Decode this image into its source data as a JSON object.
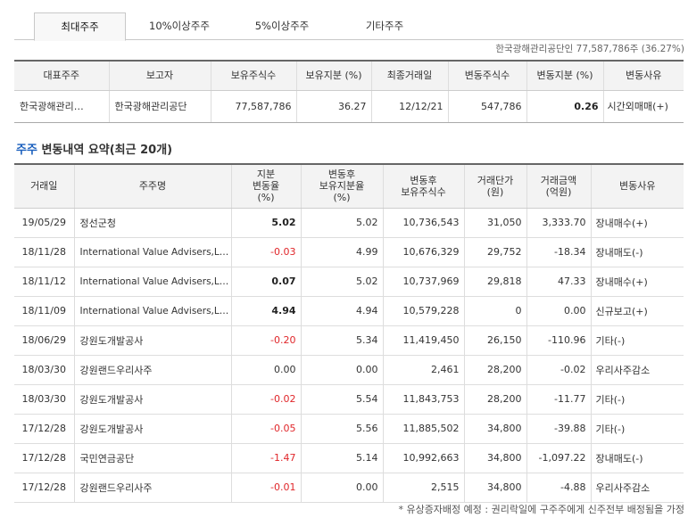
{
  "tabs": [
    "최대주주",
    "10%이상주주",
    "5%이상주주",
    "기타주주"
  ],
  "holder_summary": "한국광해관리공단인 77,587,786주 (36.27%)",
  "rep_table": {
    "headers": [
      "대표주주",
      "보고자",
      "보유주식수",
      "보유지분 (%)",
      "최종거래일",
      "변동주식수",
      "변동지분 (%)",
      "변동사유"
    ],
    "row": [
      "한국광해관리…",
      "한국광해관리공단",
      "77,587,786",
      "36.27",
      "12/12/21",
      "547,786",
      "0.26",
      "시간외매매(+)"
    ]
  },
  "section": {
    "accent": "주주",
    "title": " 변동내역 요약(최근 20개)"
  },
  "change_table": {
    "headers": [
      [
        "거래일"
      ],
      [
        "주주명"
      ],
      [
        "지분",
        "변동율",
        "(%)"
      ],
      [
        "변동후",
        "보유지분율",
        "(%)"
      ],
      [
        "변동후",
        "보유주식수"
      ],
      [
        "거래단가",
        "(원)"
      ],
      [
        "거래금액",
        "(억원)"
      ],
      [
        "변동사유"
      ]
    ],
    "rows": [
      [
        "19/05/29",
        "정선군청",
        "5.02",
        "5.02",
        "10,736,543",
        "31,050",
        "3,333.70",
        "장내매수(+)"
      ],
      [
        "18/11/28",
        "International Value Advisers,L…",
        "-0.03",
        "4.99",
        "10,676,329",
        "29,752",
        "-18.34",
        "장내매도(-)"
      ],
      [
        "18/11/12",
        "International Value Advisers,L…",
        "0.07",
        "5.02",
        "10,737,969",
        "29,818",
        "47.33",
        "장내매수(+)"
      ],
      [
        "18/11/09",
        "International Value Advisers,L…",
        "4.94",
        "4.94",
        "10,579,228",
        "0",
        "0.00",
        "신규보고(+)"
      ],
      [
        "18/06/29",
        "강원도개발공사",
        "-0.20",
        "5.34",
        "11,419,450",
        "26,150",
        "-110.96",
        "기타(-)"
      ],
      [
        "18/03/30",
        "강원랜드우리사주",
        "0.00",
        "0.00",
        "2,461",
        "28,200",
        "-0.02",
        "우리사주감소"
      ],
      [
        "18/03/30",
        "강원도개발공사",
        "-0.02",
        "5.54",
        "11,843,753",
        "28,200",
        "-11.77",
        "기타(-)"
      ],
      [
        "17/12/28",
        "강원도개발공사",
        "-0.05",
        "5.56",
        "11,885,502",
        "34,800",
        "-39.88",
        "기타(-)"
      ],
      [
        "17/12/28",
        "국민연금공단",
        "-1.47",
        "5.14",
        "10,992,663",
        "34,800",
        "-1,097.22",
        "장내매도(-)"
      ],
      [
        "17/12/28",
        "강원랜드우리사주",
        "-0.01",
        "0.00",
        "2,515",
        "34,800",
        "-4.88",
        "우리사주감소"
      ]
    ]
  },
  "footnote": "* 유상증자배정 예정 : 권리락일에 구주주에게 신주전부 배정됨을 가정",
  "colors": {
    "negative": "#e0262a",
    "accent": "#1a5fbd",
    "header_bg": "#f3f3f3"
  }
}
